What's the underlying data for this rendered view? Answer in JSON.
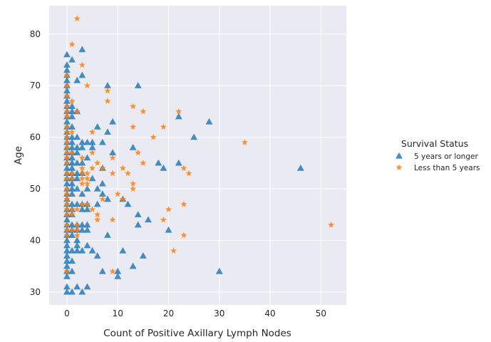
{
  "chart_data": {
    "type": "scatter",
    "title": "",
    "xlabel": "Count of Positive Axillary Lymph Nodes",
    "ylabel": "Age",
    "xlim": [
      -3.5,
      55
    ],
    "ylim": [
      27.5,
      85.5
    ],
    "xticks": [
      0,
      10,
      20,
      30,
      40,
      50
    ],
    "yticks": [
      30,
      40,
      50,
      60,
      70,
      80
    ],
    "grid": true,
    "background": "#EAEAF2",
    "legend": {
      "title": "Survival Status",
      "placement": "right"
    },
    "series": [
      {
        "name": "5 years or longer",
        "marker": "triangle",
        "color": "#1F77B4",
        "points": [
          [
            0,
            30
          ],
          [
            0,
            31
          ],
          [
            0,
            33
          ],
          [
            0,
            34
          ],
          [
            0,
            35
          ],
          [
            0,
            36
          ],
          [
            0,
            37
          ],
          [
            0,
            38
          ],
          [
            0,
            39
          ],
          [
            0,
            40
          ],
          [
            0,
            41
          ],
          [
            0,
            42
          ],
          [
            0,
            43
          ],
          [
            0,
            44
          ],
          [
            0,
            45
          ],
          [
            0,
            46
          ],
          [
            0,
            47
          ],
          [
            0,
            48
          ],
          [
            0,
            49
          ],
          [
            0,
            50
          ],
          [
            0,
            51
          ],
          [
            0,
            52
          ],
          [
            0,
            53
          ],
          [
            0,
            54
          ],
          [
            0,
            55
          ],
          [
            0,
            56
          ],
          [
            0,
            57
          ],
          [
            0,
            58
          ],
          [
            0,
            59
          ],
          [
            0,
            60
          ],
          [
            0,
            61
          ],
          [
            0,
            62
          ],
          [
            0,
            63
          ],
          [
            0,
            64
          ],
          [
            0,
            65
          ],
          [
            0,
            66
          ],
          [
            0,
            67
          ],
          [
            0,
            68
          ],
          [
            0,
            69
          ],
          [
            0,
            70
          ],
          [
            0,
            71
          ],
          [
            0,
            72
          ],
          [
            0,
            73
          ],
          [
            0,
            74
          ],
          [
            0,
            76
          ],
          [
            1,
            30
          ],
          [
            1,
            34
          ],
          [
            1,
            36
          ],
          [
            1,
            38
          ],
          [
            1,
            41
          ],
          [
            1,
            42
          ],
          [
            1,
            43
          ],
          [
            1,
            45
          ],
          [
            1,
            46
          ],
          [
            1,
            47
          ],
          [
            1,
            49
          ],
          [
            1,
            50
          ],
          [
            1,
            51
          ],
          [
            1,
            52
          ],
          [
            1,
            53
          ],
          [
            1,
            54
          ],
          [
            1,
            55
          ],
          [
            1,
            56
          ],
          [
            1,
            57
          ],
          [
            1,
            58
          ],
          [
            1,
            59
          ],
          [
            1,
            60
          ],
          [
            1,
            62
          ],
          [
            1,
            64
          ],
          [
            1,
            65
          ],
          [
            1,
            66
          ],
          [
            1,
            75
          ],
          [
            2,
            31
          ],
          [
            2,
            38
          ],
          [
            2,
            39
          ],
          [
            2,
            40
          ],
          [
            2,
            42
          ],
          [
            2,
            43
          ],
          [
            2,
            47
          ],
          [
            2,
            50
          ],
          [
            2,
            52
          ],
          [
            2,
            53
          ],
          [
            2,
            55
          ],
          [
            2,
            57
          ],
          [
            2,
            58
          ],
          [
            2,
            60
          ],
          [
            2,
            65
          ],
          [
            2,
            71
          ],
          [
            3,
            30
          ],
          [
            3,
            38
          ],
          [
            3,
            42
          ],
          [
            3,
            43
          ],
          [
            3,
            46
          ],
          [
            3,
            47
          ],
          [
            3,
            49
          ],
          [
            3,
            53
          ],
          [
            3,
            55
          ],
          [
            3,
            58
          ],
          [
            3,
            59
          ],
          [
            3,
            72
          ],
          [
            3,
            77
          ],
          [
            4,
            31
          ],
          [
            4,
            39
          ],
          [
            4,
            42
          ],
          [
            4,
            43
          ],
          [
            4,
            46
          ],
          [
            4,
            47
          ],
          [
            4,
            50
          ],
          [
            4,
            56
          ],
          [
            4,
            59
          ],
          [
            5,
            38
          ],
          [
            5,
            52
          ],
          [
            5,
            58
          ],
          [
            5,
            59
          ],
          [
            6,
            37
          ],
          [
            6,
            47
          ],
          [
            6,
            50
          ],
          [
            6,
            62
          ],
          [
            7,
            34
          ],
          [
            7,
            49
          ],
          [
            7,
            51
          ],
          [
            7,
            54
          ],
          [
            7,
            59
          ],
          [
            8,
            41
          ],
          [
            8,
            48
          ],
          [
            8,
            61
          ],
          [
            8,
            70
          ],
          [
            9,
            57
          ],
          [
            9,
            63
          ],
          [
            10,
            33
          ],
          [
            10,
            34
          ],
          [
            11,
            38
          ],
          [
            11,
            48
          ],
          [
            12,
            47
          ],
          [
            13,
            35
          ],
          [
            13,
            58
          ],
          [
            14,
            43
          ],
          [
            14,
            45
          ],
          [
            14,
            70
          ],
          [
            15,
            37
          ],
          [
            16,
            44
          ],
          [
            18,
            55
          ],
          [
            19,
            54
          ],
          [
            20,
            42
          ],
          [
            22,
            55
          ],
          [
            22,
            64
          ],
          [
            25,
            60
          ],
          [
            28,
            63
          ],
          [
            30,
            34
          ],
          [
            46,
            54
          ]
        ]
      },
      {
        "name": "Less than 5 years",
        "marker": "star",
        "color": "#FF7F0E",
        "points": [
          [
            2,
            83
          ],
          [
            1,
            78
          ],
          [
            3,
            74
          ],
          [
            4,
            70
          ],
          [
            0,
            72
          ],
          [
            0,
            70
          ],
          [
            0,
            68
          ],
          [
            0,
            66
          ],
          [
            0,
            65
          ],
          [
            0,
            64
          ],
          [
            0,
            62
          ],
          [
            0,
            61
          ],
          [
            0,
            60
          ],
          [
            0,
            59
          ],
          [
            0,
            58
          ],
          [
            0,
            57
          ],
          [
            0,
            56
          ],
          [
            0,
            55
          ],
          [
            0,
            53
          ],
          [
            0,
            52
          ],
          [
            0,
            50
          ],
          [
            0,
            49
          ],
          [
            0,
            48
          ],
          [
            0,
            47
          ],
          [
            0,
            46
          ],
          [
            0,
            45
          ],
          [
            0,
            43
          ],
          [
            0,
            42
          ],
          [
            0,
            41
          ],
          [
            0,
            34
          ],
          [
            1,
            67
          ],
          [
            1,
            61
          ],
          [
            1,
            57
          ],
          [
            1,
            53
          ],
          [
            1,
            52
          ],
          [
            1,
            46
          ],
          [
            1,
            45
          ],
          [
            1,
            42
          ],
          [
            2,
            65
          ],
          [
            2,
            46
          ],
          [
            2,
            43
          ],
          [
            2,
            42
          ],
          [
            2,
            41
          ],
          [
            3,
            56
          ],
          [
            3,
            54
          ],
          [
            3,
            53
          ],
          [
            3,
            52
          ],
          [
            3,
            51
          ],
          [
            3,
            47
          ],
          [
            4,
            53
          ],
          [
            4,
            52
          ],
          [
            4,
            51
          ],
          [
            4,
            47
          ],
          [
            5,
            61
          ],
          [
            5,
            57
          ],
          [
            5,
            54
          ],
          [
            5,
            46
          ],
          [
            6,
            55
          ],
          [
            6,
            45
          ],
          [
            6,
            44
          ],
          [
            7,
            54
          ],
          [
            7,
            48
          ],
          [
            8,
            69
          ],
          [
            8,
            67
          ],
          [
            9,
            56
          ],
          [
            9,
            53
          ],
          [
            9,
            44
          ],
          [
            9,
            34
          ],
          [
            10,
            49
          ],
          [
            11,
            54
          ],
          [
            11,
            48
          ],
          [
            12,
            53
          ],
          [
            13,
            66
          ],
          [
            13,
            62
          ],
          [
            13,
            51
          ],
          [
            13,
            50
          ],
          [
            14,
            57
          ],
          [
            15,
            65
          ],
          [
            15,
            55
          ],
          [
            17,
            60
          ],
          [
            19,
            62
          ],
          [
            19,
            44
          ],
          [
            20,
            46
          ],
          [
            21,
            38
          ],
          [
            22,
            65
          ],
          [
            23,
            54
          ],
          [
            23,
            47
          ],
          [
            23,
            41
          ],
          [
            24,
            53
          ],
          [
            35,
            59
          ],
          [
            52,
            43
          ]
        ]
      }
    ]
  }
}
